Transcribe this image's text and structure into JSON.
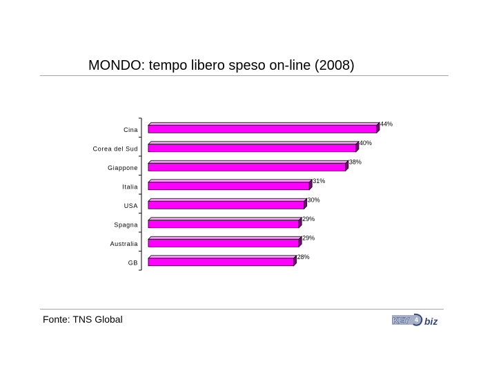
{
  "page": {
    "title": "MONDO: tempo libero speso on-line (2008)",
    "source": "Fonte: TNS Global",
    "logo_text": "KEY4biz"
  },
  "colors": {
    "bar_front": "#ff00ff",
    "bar_top": "#ff99ff",
    "bar_side": "#800080",
    "rule": "#a6a6a6"
  },
  "chart_data": {
    "type": "bar",
    "orientation": "horizontal",
    "categories": [
      "Cina",
      "Corea del Sud",
      "Giappone",
      "Italia",
      "USA",
      "Spagna",
      "Australia",
      "GB"
    ],
    "values": [
      44,
      40,
      38,
      31,
      30,
      29,
      29,
      28
    ],
    "data_labels": [
      "44%",
      "40%",
      "38%",
      "31%",
      "30%",
      "29%",
      "29%",
      "28%"
    ],
    "title": "MONDO: tempo libero speso on-line (2008)",
    "xlabel": "",
    "ylabel": "",
    "xlim": [
      0,
      44
    ],
    "grid": false,
    "legend": "none"
  }
}
